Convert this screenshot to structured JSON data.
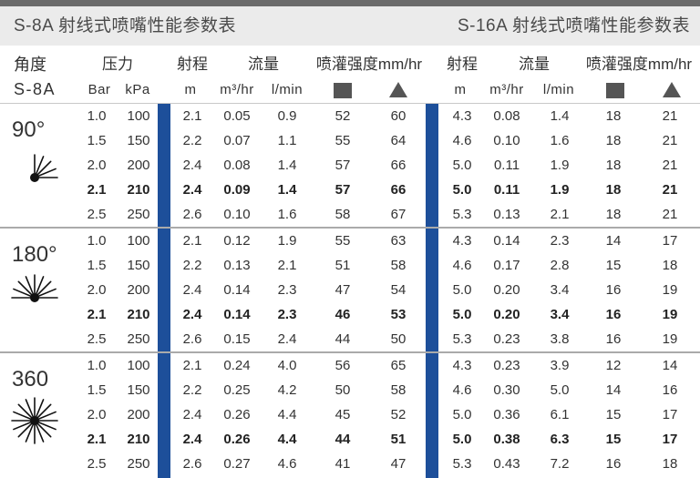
{
  "titles": {
    "left": "S-8A 射线式喷嘴性能参数表",
    "right": "S-16A 射线式喷嘴性能参数表"
  },
  "header": {
    "angle": "角度",
    "model": "S-8A",
    "pressure": "压力",
    "bar_unit": "Bar",
    "kpa_unit": "kPa",
    "s8a": {
      "radius": "射程",
      "flow": "流量",
      "intensity": "喷灌强度mm/hr",
      "radius_unit": "m",
      "flow_m3_unit": "m³/hr",
      "flow_lmin_unit": "l/min",
      "square_icon": "square-spacing-icon",
      "triangle_icon": "triangle-spacing-icon"
    },
    "s16a": {
      "radius": "射程",
      "flow": "流量",
      "intensity": "喷灌强度mm/hr",
      "radius_unit": "m",
      "flow_m3_unit": "m³/hr",
      "flow_lmin_unit": "l/min",
      "square_icon": "square-spacing-icon",
      "triangle_icon": "triangle-spacing-icon"
    }
  },
  "colors": {
    "accent": "#1d4f9a"
  },
  "groups": [
    {
      "angle": "90°",
      "icon": "spray-90-degree-icon",
      "rows": [
        {
          "bar": "1.0",
          "kpa": "100",
          "s8a": [
            "2.1",
            "0.05",
            "0.9",
            "52",
            "60"
          ],
          "s16a": [
            "4.3",
            "0.08",
            "1.4",
            "18",
            "21"
          ]
        },
        {
          "bar": "1.5",
          "kpa": "150",
          "s8a": [
            "2.2",
            "0.07",
            "1.1",
            "55",
            "64"
          ],
          "s16a": [
            "4.6",
            "0.10",
            "1.6",
            "18",
            "21"
          ]
        },
        {
          "bar": "2.0",
          "kpa": "200",
          "s8a": [
            "2.4",
            "0.08",
            "1.4",
            "57",
            "66"
          ],
          "s16a": [
            "5.0",
            "0.11",
            "1.9",
            "18",
            "21"
          ]
        },
        {
          "bar": "2.1",
          "kpa": "210",
          "s8a": [
            "2.4",
            "0.09",
            "1.4",
            "57",
            "66"
          ],
          "s16a": [
            "5.0",
            "0.11",
            "1.9",
            "18",
            "21"
          ]
        },
        {
          "bar": "2.5",
          "kpa": "250",
          "s8a": [
            "2.6",
            "0.10",
            "1.6",
            "58",
            "67"
          ],
          "s16a": [
            "5.3",
            "0.13",
            "2.1",
            "18",
            "21"
          ]
        }
      ]
    },
    {
      "angle": "180°",
      "icon": "spray-180-degree-icon",
      "rows": [
        {
          "bar": "1.0",
          "kpa": "100",
          "s8a": [
            "2.1",
            "0.12",
            "1.9",
            "55",
            "63"
          ],
          "s16a": [
            "4.3",
            "0.14",
            "2.3",
            "14",
            "17"
          ]
        },
        {
          "bar": "1.5",
          "kpa": "150",
          "s8a": [
            "2.2",
            "0.13",
            "2.1",
            "51",
            "58"
          ],
          "s16a": [
            "4.6",
            "0.17",
            "2.8",
            "15",
            "18"
          ]
        },
        {
          "bar": "2.0",
          "kpa": "200",
          "s8a": [
            "2.4",
            "0.14",
            "2.3",
            "47",
            "54"
          ],
          "s16a": [
            "5.0",
            "0.20",
            "3.4",
            "16",
            "19"
          ]
        },
        {
          "bar": "2.1",
          "kpa": "210",
          "s8a": [
            "2.4",
            "0.14",
            "2.3",
            "46",
            "53"
          ],
          "s16a": [
            "5.0",
            "0.20",
            "3.4",
            "16",
            "19"
          ]
        },
        {
          "bar": "2.5",
          "kpa": "250",
          "s8a": [
            "2.6",
            "0.15",
            "2.4",
            "44",
            "50"
          ],
          "s16a": [
            "5.3",
            "0.23",
            "3.8",
            "16",
            "19"
          ]
        }
      ]
    },
    {
      "angle": "360",
      "icon": "spray-360-degree-icon",
      "rows": [
        {
          "bar": "1.0",
          "kpa": "100",
          "s8a": [
            "2.1",
            "0.24",
            "4.0",
            "56",
            "65"
          ],
          "s16a": [
            "4.3",
            "0.23",
            "3.9",
            "12",
            "14"
          ]
        },
        {
          "bar": "1.5",
          "kpa": "150",
          "s8a": [
            "2.2",
            "0.25",
            "4.2",
            "50",
            "58"
          ],
          "s16a": [
            "4.6",
            "0.30",
            "5.0",
            "14",
            "16"
          ]
        },
        {
          "bar": "2.0",
          "kpa": "200",
          "s8a": [
            "2.4",
            "0.26",
            "4.4",
            "45",
            "52"
          ],
          "s16a": [
            "5.0",
            "0.36",
            "6.1",
            "15",
            "17"
          ]
        },
        {
          "bar": "2.1",
          "kpa": "210",
          "s8a": [
            "2.4",
            "0.26",
            "4.4",
            "44",
            "51"
          ],
          "s16a": [
            "5.0",
            "0.38",
            "6.3",
            "15",
            "17"
          ]
        },
        {
          "bar": "2.5",
          "kpa": "250",
          "s8a": [
            "2.6",
            "0.27",
            "4.6",
            "41",
            "47"
          ],
          "s16a": [
            "5.3",
            "0.43",
            "7.2",
            "16",
            "18"
          ]
        }
      ]
    }
  ]
}
